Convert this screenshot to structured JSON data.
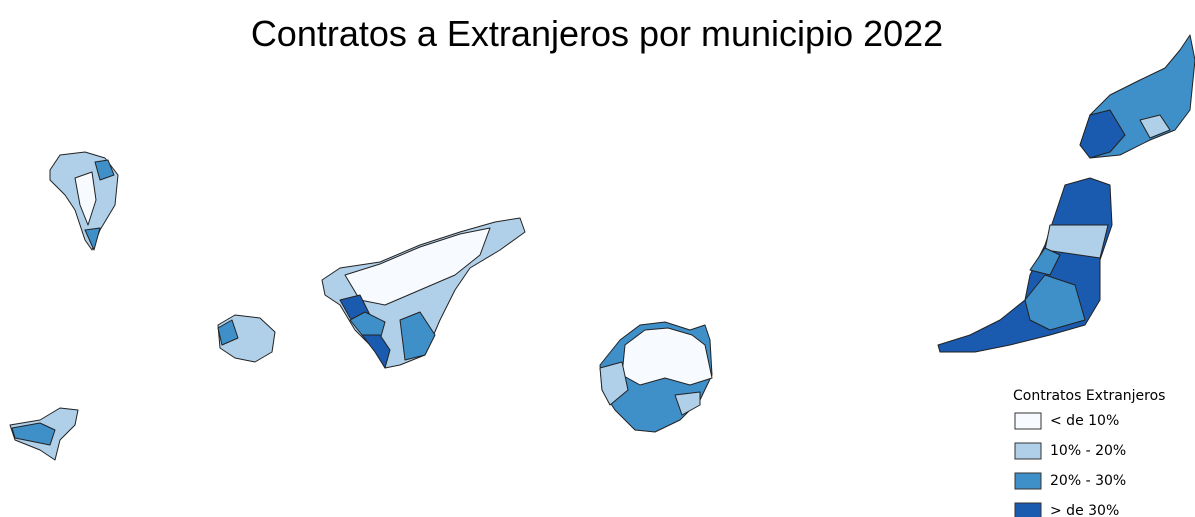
{
  "title": "Contratos a Extranjeros por municipio 2022",
  "legend": {
    "title": "Contratos Extranjeros",
    "items": [
      {
        "label": "< de 10%",
        "color": "#f7fbff"
      },
      {
        "label": "10% - 20%",
        "color": "#b0cfe8"
      },
      {
        "label": "20% - 30%",
        "color": "#3f8fc9"
      },
      {
        "label": "> de 30%",
        "color": "#1a5aaf"
      }
    ]
  }
}
